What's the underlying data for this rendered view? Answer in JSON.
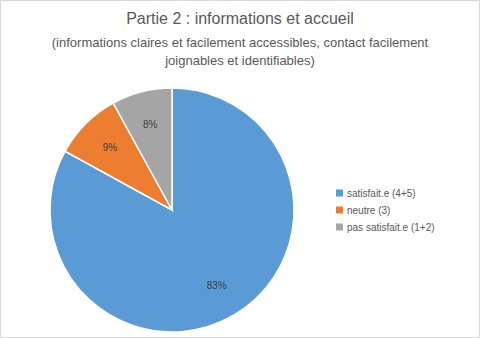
{
  "chart_data": {
    "type": "pie",
    "title": "Partie 2 : informations et accueil",
    "subtitle": "(informations claires et facilement accessibles, contact facilement joignables et identifiables)",
    "categories": [
      "satisfait.e (4+5)",
      "neutre (3)",
      "pas satisfait.e (1+2)"
    ],
    "values": [
      83,
      9,
      8
    ],
    "value_labels": [
      "83%",
      "9%",
      "8%"
    ],
    "colors": [
      "#5b9bd5",
      "#ed7d31",
      "#a5a5a5"
    ],
    "data_labels": true,
    "legend": "right"
  }
}
